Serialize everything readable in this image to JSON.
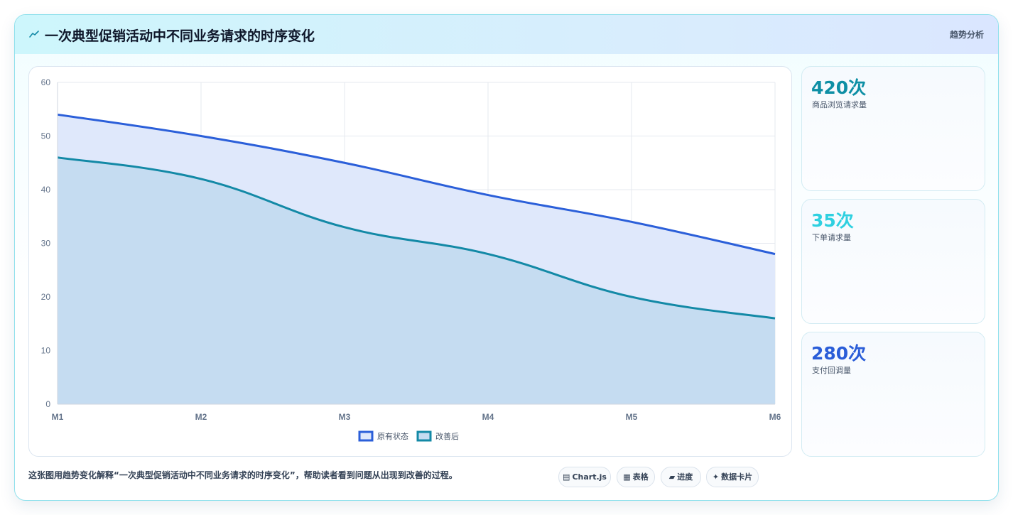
{
  "header": {
    "icon": "trend-line-icon",
    "title": "一次典型促销活动中不同业务请求的时序变化",
    "tag": "趋势分析"
  },
  "chart_data": {
    "type": "area",
    "categories": [
      "M1",
      "M2",
      "M3",
      "M4",
      "M5",
      "M6"
    ],
    "ylim": [
      0,
      60
    ],
    "yticks": [
      0,
      10,
      20,
      30,
      40,
      50,
      60
    ],
    "grid": true,
    "legend_position": "bottom",
    "series": [
      {
        "name": "原有状态",
        "values": [
          54,
          50,
          45,
          39,
          34,
          28
        ],
        "color": "#2b5fd9",
        "fill": "#dfe8fb"
      },
      {
        "name": "改善后",
        "values": [
          46,
          42,
          33,
          28,
          20,
          16
        ],
        "color": "#1389a6",
        "fill": "#c5dcf1"
      }
    ]
  },
  "kpis": [
    {
      "value": "420次",
      "label": "商品浏览请求量",
      "color": "#0e8fa5"
    },
    {
      "value": "35次",
      "label": "下单请求量",
      "color": "#2fd0e0"
    },
    {
      "value": "280次",
      "label": "支付回调量",
      "color": "#2a5dd8"
    }
  ],
  "footer": {
    "description": "这张图用趋势变化解释“一次典型促销活动中不同业务请求的时序变化”，帮助读者看到问题从出现到改善的过程。",
    "chips": [
      {
        "icon": "chart-icon",
        "glyph": "▤",
        "label": "Chart.js"
      },
      {
        "icon": "table-icon",
        "glyph": "▦",
        "label": "表格"
      },
      {
        "icon": "progress-icon",
        "glyph": "▰",
        "label": "进度"
      },
      {
        "icon": "data-card-icon",
        "glyph": "✦",
        "label": "数据卡片"
      }
    ]
  }
}
